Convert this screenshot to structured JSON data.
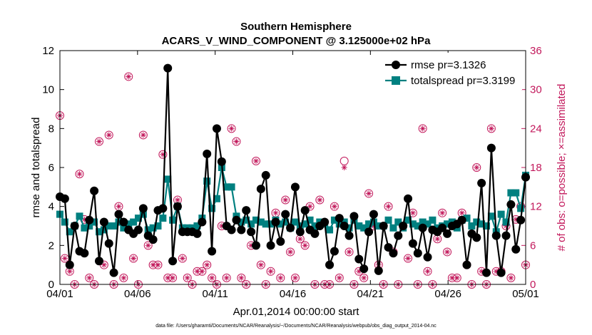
{
  "chart_data": {
    "type": "line",
    "title": "Southern Hemisphere",
    "subtitle": "ACARS_V_WIND_COMPONENT @ 3.125000e+02 hPa",
    "xlabel": "Apr.01,2014 00:00:00 start",
    "ylabel": "rmse and totalspread",
    "ylabel_right": "# of obs: o=possible; ×=assimilated",
    "footnote": "data file: /Users/gharamti/Documents/NCAR/Reanalysis/~/Documents/NCAR/Reanalysis/webpub/obs_diag_output_2014-04.nc",
    "x_ticks": [
      "04/01",
      "04/06",
      "04/11",
      "04/16",
      "04/21",
      "04/26",
      "05/01"
    ],
    "y_ticks": [
      "0",
      "2",
      "4",
      "6",
      "8",
      "10",
      "12"
    ],
    "y2_ticks": [
      "0",
      "6",
      "12",
      "18",
      "24",
      "30",
      "36"
    ],
    "xlim": [
      0,
      30
    ],
    "ylim": [
      0,
      12
    ],
    "y2lim": [
      0,
      36
    ],
    "legend_position": "top-right",
    "colors": {
      "rmse": "#000000",
      "totalspread": "#008080",
      "obs": "#c2185b"
    },
    "series": [
      {
        "name": "rmse pr=3.1326",
        "axis": "left",
        "marker": "circle",
        "values": [
          4.5,
          4.4,
          1.0,
          3.0,
          1.7,
          1.6,
          3.3,
          4.8,
          1.2,
          3.2,
          2.1,
          0.6,
          3.6,
          3.2,
          2.8,
          2.6,
          2.8,
          3.9,
          2.5,
          2.3,
          3.8,
          3.9,
          11.1,
          1.2,
          4.0,
          2.7,
          2.7,
          2.7,
          2.6,
          3.2,
          6.7,
          1.7,
          8.0,
          6.3,
          3.0,
          2.8,
          3.3,
          2.8,
          3.8,
          2.7,
          2.0,
          4.9,
          5.6,
          2.0,
          3.2,
          2.2,
          3.6,
          2.9,
          5.0,
          2.7,
          3.8,
          2.8,
          2.6,
          3.0,
          3.2,
          1.0,
          1.7,
          3.4,
          3.0,
          2.5,
          3.5,
          1.3,
          0.8,
          2.7,
          3.6,
          0.7,
          3.0,
          1.9,
          1.6,
          2.5,
          3.0,
          4.4,
          2.1,
          1.6,
          2.9,
          1.4,
          2.8,
          2.7,
          2.9,
          2.6,
          3.0,
          3.1,
          3.3,
          1.0,
          2.6,
          2.4,
          5.2,
          0.6,
          7.0,
          2.5,
          0.6,
          2.5,
          4.1,
          1.8,
          3.3,
          5.5
        ]
      },
      {
        "name": "totalspread pr=3.3199",
        "axis": "left",
        "marker": "square",
        "values": [
          3.6,
          3.2,
          2.7,
          3.0,
          3.5,
          2.9,
          3.0,
          3.2,
          2.7,
          2.8,
          3.0,
          3.0,
          3.2,
          2.9,
          3.1,
          3.2,
          3.4,
          3.6,
          2.8,
          2.9,
          3.0,
          3.4,
          5.4,
          3.3,
          4.0,
          2.9,
          2.9,
          2.9,
          3.0,
          3.4,
          5.3,
          3.9,
          4.4,
          6.0,
          5.0,
          5.0,
          3.5,
          3.2,
          3.3,
          3.1,
          3.3,
          3.2,
          3.1,
          3.1,
          3.3,
          3.1,
          3.2,
          2.9,
          3.2,
          3.0,
          3.1,
          3.3,
          3.0,
          3.2,
          3.1,
          2.8,
          3.3,
          3.1,
          3.2,
          2.9,
          3.3,
          3.0,
          2.9,
          3.1,
          3.2,
          3.0,
          3.0,
          3.3,
          2.9,
          3.2,
          2.9,
          3.3,
          3.1,
          3.0,
          3.2,
          3.1,
          3.3,
          2.9,
          3.0,
          3.1,
          3.2,
          2.9,
          3.3,
          3.4,
          3.0,
          3.2,
          3.1,
          3.0,
          3.5,
          2.7,
          3.6,
          3.2,
          4.7,
          4.7,
          3.9,
          5.6
        ]
      },
      {
        "name": "possible",
        "axis": "right",
        "marker": "o",
        "values": [
          26,
          4,
          2,
          0,
          17,
          10,
          1,
          0,
          22,
          3,
          23,
          0,
          12,
          1,
          32,
          4,
          0,
          23,
          6,
          3,
          3,
          20,
          1,
          1,
          13,
          4,
          1,
          0,
          2,
          2,
          3,
          1,
          0,
          9,
          1,
          24,
          22,
          1,
          0,
          6,
          19,
          3,
          0,
          2,
          11,
          1,
          13,
          5,
          1,
          7,
          6,
          12,
          0,
          13,
          0,
          0,
          12,
          1,
          19,
          5,
          0,
          2,
          1,
          14,
          9,
          3,
          0,
          12,
          5,
          0,
          9,
          4,
          11,
          0,
          24,
          2,
          0,
          7,
          11,
          5,
          1,
          1,
          11,
          3,
          0,
          18,
          2,
          0,
          24,
          2,
          2,
          9,
          1,
          10,
          12,
          3
        ]
      },
      {
        "name": "assimilated",
        "axis": "right",
        "marker": "x",
        "values": [
          26,
          4,
          2,
          0,
          17,
          10,
          1,
          0,
          22,
          3,
          23,
          0,
          12,
          1,
          32,
          4,
          0,
          23,
          6,
          3,
          3,
          20,
          1,
          1,
          13,
          4,
          1,
          0,
          2,
          2,
          3,
          1,
          0,
          9,
          1,
          24,
          22,
          1,
          0,
          6,
          19,
          3,
          0,
          2,
          11,
          1,
          13,
          5,
          1,
          7,
          6,
          12,
          0,
          13,
          0,
          0,
          12,
          1,
          18,
          5,
          0,
          2,
          1,
          14,
          9,
          3,
          0,
          12,
          5,
          0,
          9,
          4,
          11,
          0,
          24,
          2,
          0,
          7,
          11,
          5,
          1,
          1,
          11,
          3,
          0,
          18,
          2,
          0,
          24,
          2,
          2,
          9,
          1,
          10,
          12,
          3
        ]
      }
    ]
  }
}
